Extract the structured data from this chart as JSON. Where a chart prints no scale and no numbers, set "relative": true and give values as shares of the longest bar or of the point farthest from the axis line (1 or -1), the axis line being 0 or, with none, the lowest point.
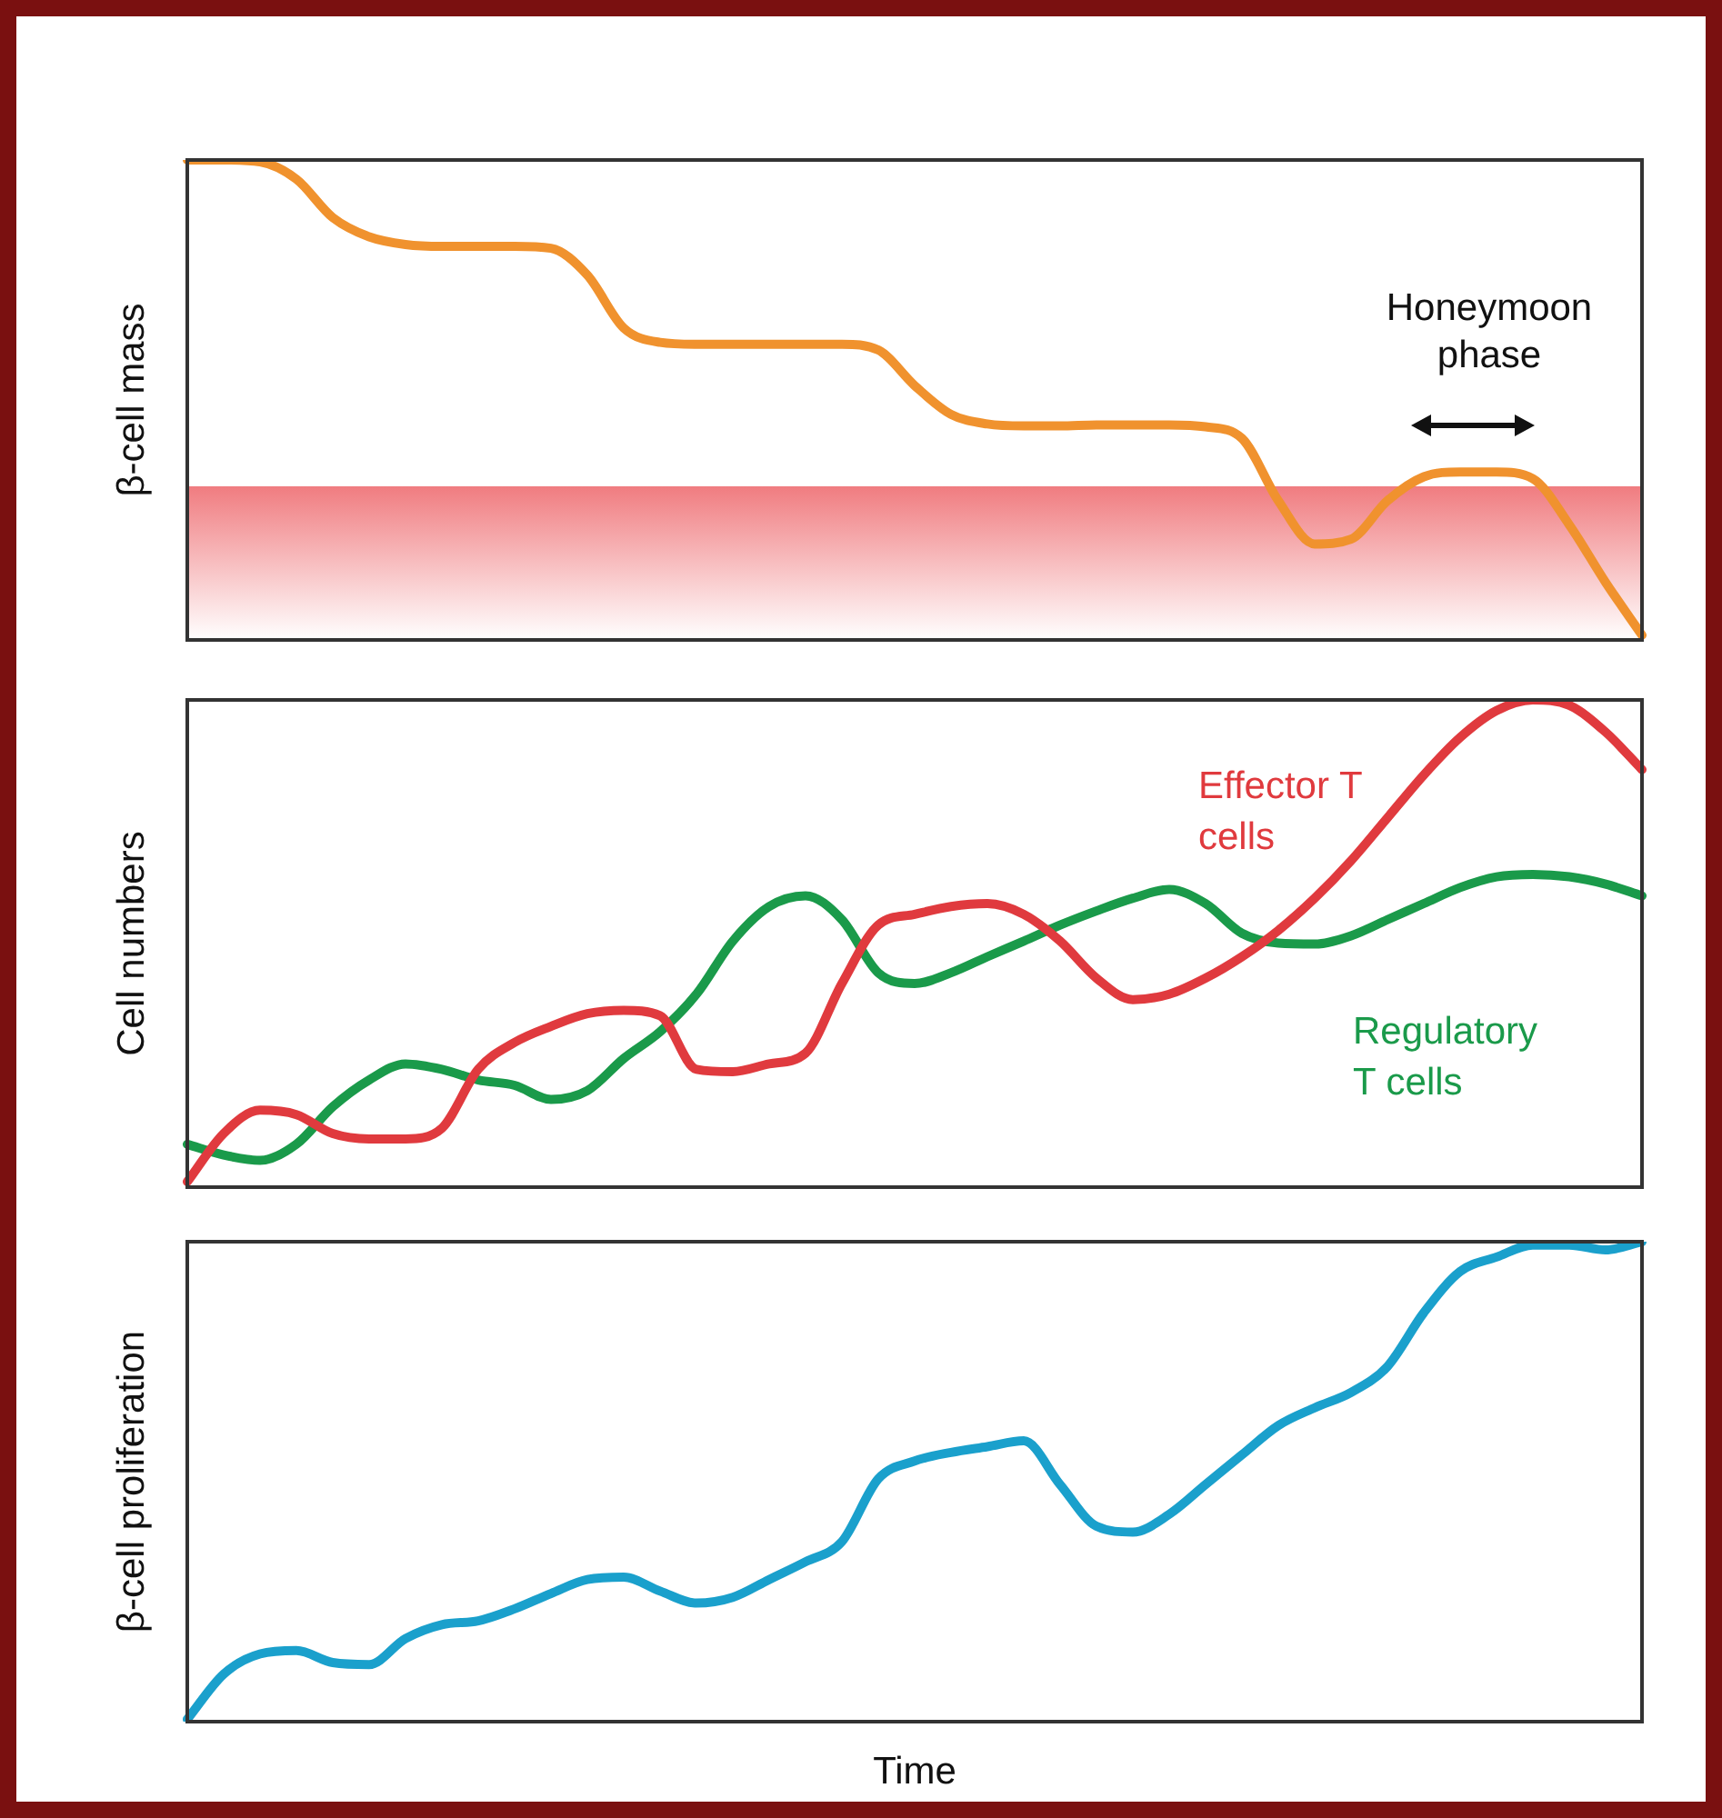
{
  "chart_data": [
    {
      "type": "line",
      "ylabel": "β-cell mass",
      "relative": true,
      "categories": [
        null,
        null,
        null,
        null,
        null,
        null,
        null,
        null,
        null,
        null,
        null,
        null,
        null,
        null,
        null,
        null,
        null,
        null,
        null,
        null,
        null,
        null,
        null,
        null,
        null,
        null,
        null,
        null,
        null,
        null,
        null,
        null,
        null,
        null,
        null,
        null,
        null,
        null,
        null,
        null,
        null
      ],
      "series": [
        {
          "color": "#f0922e",
          "values": [
            1,
            1,
            0.996,
            0.96,
            0.88,
            0.84,
            0.824,
            0.82,
            0.82,
            0.82,
            0.816,
            0.76,
            0.65,
            0.62,
            0.616,
            0.616,
            0.616,
            0.616,
            0.616,
            0.604,
            0.53,
            0.47,
            0.45,
            0.446,
            0.446,
            0.448,
            0.448,
            0.448,
            0.444,
            0.42,
            0.29,
            0.2,
            0.21,
            0.29,
            0.34,
            0.35,
            0.35,
            0.336,
            0.24,
            0.12,
            0.01
          ]
        }
      ],
      "bands": [
        {
          "axis": "y",
          "from": 0,
          "to": 0.32,
          "color": "#f07c80",
          "label": null
        }
      ],
      "annotations": [
        "Honeymoon phase"
      ]
    },
    {
      "type": "line",
      "ylabel": "Cell numbers",
      "relative": true,
      "categories": [
        null,
        null,
        null,
        null,
        null,
        null,
        null,
        null,
        null,
        null,
        null,
        null,
        null,
        null,
        null,
        null,
        null,
        null,
        null,
        null,
        null,
        null,
        null,
        null,
        null,
        null,
        null,
        null,
        null,
        null,
        null,
        null,
        null,
        null,
        null,
        null,
        null,
        null,
        null,
        null,
        null
      ],
      "series": [
        {
          "name": "Effector T cells",
          "color": "#e03a3e",
          "values": [
            0.011,
            0.11,
            0.158,
            0.149,
            0.11,
            0.099,
            0.099,
            0.121,
            0.242,
            0.297,
            0.33,
            0.356,
            0.363,
            0.352,
            0.242,
            0.237,
            0.253,
            0.275,
            0.418,
            0.538,
            0.56,
            0.576,
            0.582,
            0.56,
            0.505,
            0.429,
            0.385,
            0.396,
            0.429,
            0.473,
            0.527,
            0.593,
            0.67,
            0.758,
            0.846,
            0.923,
            0.978,
            1,
            0.989,
            0.934,
            0.857
          ]
        },
        {
          "name": "Regulatory T cells",
          "color": "#1a9a4a",
          "values": [
            0.088,
            0.066,
            0.055,
            0.088,
            0.165,
            0.22,
            0.253,
            0.242,
            0.22,
            0.209,
            0.18,
            0.198,
            0.264,
            0.319,
            0.396,
            0.505,
            0.576,
            0.598,
            0.549,
            0.44,
            0.418,
            0.44,
            0.473,
            0.505,
            0.538,
            0.567,
            0.593,
            0.611,
            0.582,
            0.521,
            0.501,
            0.499,
            0.516,
            0.549,
            0.582,
            0.615,
            0.637,
            0.642,
            0.637,
            0.622,
            0.598
          ]
        }
      ]
    },
    {
      "type": "line",
      "ylabel": "β-cell proliferation",
      "xlabel": "Time",
      "relative": true,
      "categories": [
        null,
        null,
        null,
        null,
        null,
        null,
        null,
        null,
        null,
        null,
        null,
        null,
        null,
        null,
        null,
        null,
        null,
        null,
        null,
        null,
        null,
        null,
        null,
        null,
        null,
        null,
        null,
        null,
        null,
        null,
        null,
        null,
        null,
        null,
        null,
        null,
        null,
        null,
        null,
        null,
        null
      ],
      "series": [
        {
          "color": "#1aa0cc",
          "values": [
            0.005,
            0.099,
            0.141,
            0.148,
            0.123,
            0.119,
            0.173,
            0.202,
            0.21,
            0.235,
            0.267,
            0.296,
            0.301,
            0.272,
            0.247,
            0.259,
            0.296,
            0.333,
            0.375,
            0.506,
            0.543,
            0.561,
            0.573,
            0.585,
            0.494,
            0.407,
            0.395,
            0.432,
            0.494,
            0.556,
            0.617,
            0.654,
            0.686,
            0.74,
            0.852,
            0.938,
            0.968,
            0.993,
            0.993,
            0.983,
            1
          ]
        }
      ]
    }
  ]
}
